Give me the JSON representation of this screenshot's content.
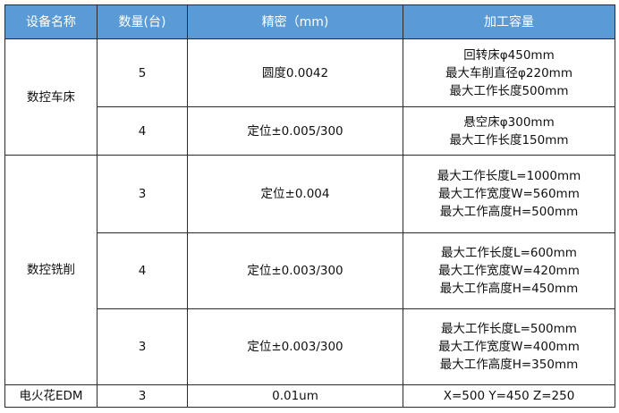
{
  "colors": {
    "header_bg": "#5b9bd5",
    "header_text": "#ffffff",
    "border": "#2b2b2b"
  },
  "headers": [
    "设备名称",
    "数量(台)",
    "精密（mm)",
    "加工容量"
  ],
  "groups": [
    {
      "name": "数控车床",
      "rows": [
        {
          "qty": "5",
          "precision": "圆度0.0042",
          "capacity": [
            "回转床φ450mm",
            "最大车削直径φ220mm",
            "最大工作长度500mm"
          ]
        },
        {
          "qty": "4",
          "precision": "定位±0.005/300",
          "capacity": [
            "悬空床φ300mm",
            "最大工作长度150mm"
          ]
        }
      ]
    },
    {
      "name": "数控铣削",
      "rows": [
        {
          "qty": "3",
          "precision": "定位±0.004",
          "capacity": [
            "最大工作长度L=1000mm",
            "最大工作宽度W=560mm",
            "最大工作高度H=500mm"
          ]
        },
        {
          "qty": "4",
          "precision": "定位±0.003/300",
          "capacity": [
            "最大工作长度L=600mm",
            "最大工作宽度W=420mm",
            "最大工作高度H=450mm"
          ]
        },
        {
          "qty": "3",
          "precision": "定位±0.003/300",
          "capacity": [
            "最大工作长度L=500mm",
            "最大工作宽度W=400mm",
            "最大工作高度H=350mm"
          ]
        }
      ]
    },
    {
      "name": "电火花EDM",
      "rows": [
        {
          "qty": "3",
          "precision": "0.01um",
          "capacity": [
            "X=500 Y=450 Z=250"
          ]
        }
      ]
    }
  ]
}
